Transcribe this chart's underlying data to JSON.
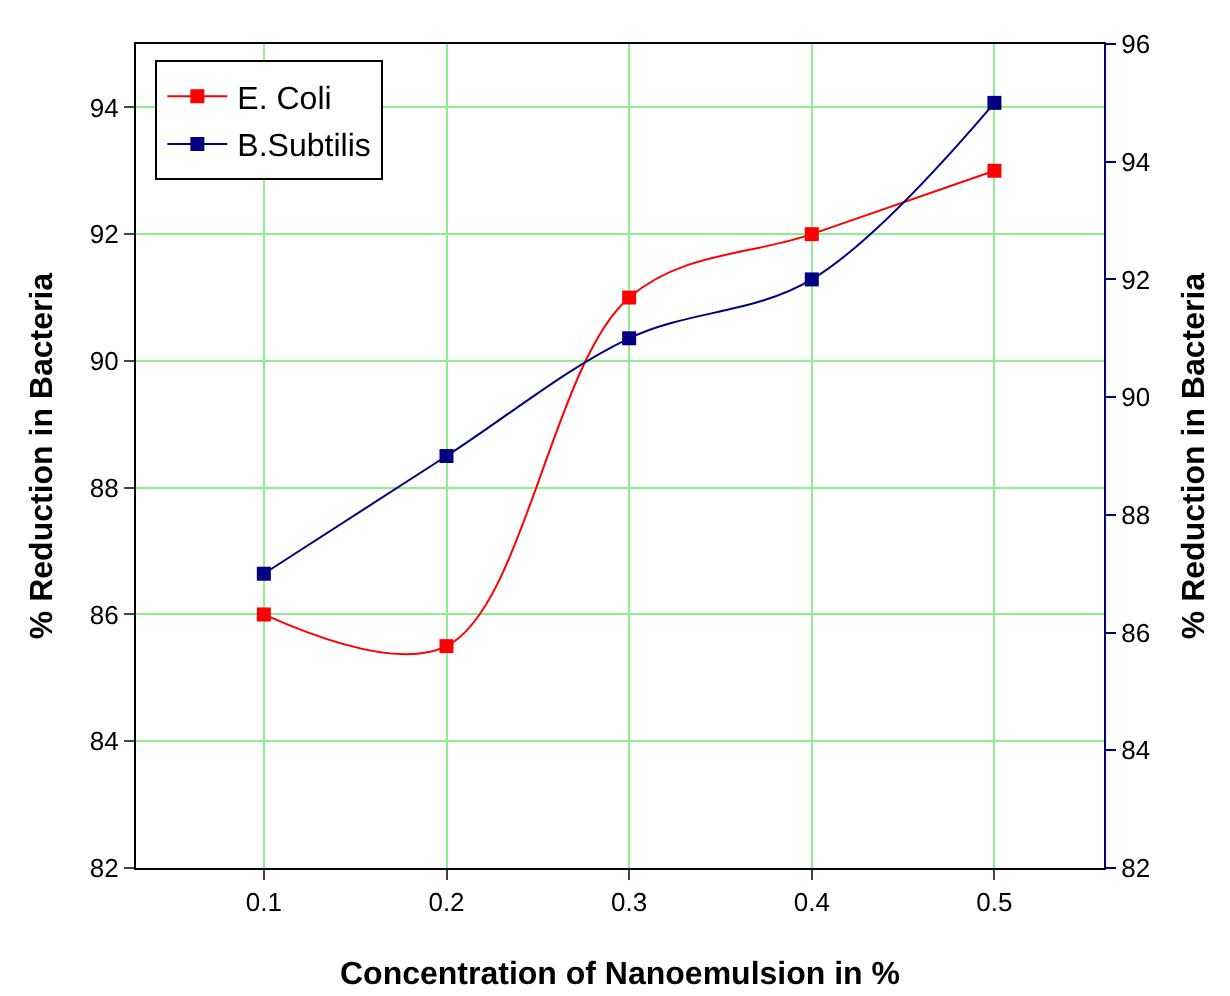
{
  "chart_data": {
    "type": "line",
    "xlabel": "Concentration of Nanoemulsion in %",
    "ylabel": "% Reduction in Bacteria",
    "y2label": "% Reduction in Bacteria",
    "x": [
      0.1,
      0.2,
      0.3,
      0.4,
      0.5
    ],
    "series": [
      {
        "name": "E. Coli",
        "color": "#ff0000",
        "values": [
          86.0,
          85.5,
          91.0,
          92.0,
          93.0
        ]
      },
      {
        "name": "B.Subtilis",
        "color": "#000080",
        "values": [
          87,
          89,
          91,
          92,
          95
        ],
        "axis": "y2"
      }
    ],
    "xlim": [
      0.03,
      0.56
    ],
    "xticks": [
      0.1,
      0.2,
      0.3,
      0.4,
      0.5
    ],
    "ylim": [
      82,
      95
    ],
    "yticks": [
      82,
      84,
      86,
      88,
      90,
      92,
      94
    ],
    "y2lim": [
      82,
      96
    ],
    "y2ticks": [
      82,
      84,
      86,
      88,
      90,
      92,
      94,
      96
    ],
    "grid": true,
    "legend": "top left",
    "marker": "square",
    "line_style": "solid"
  }
}
